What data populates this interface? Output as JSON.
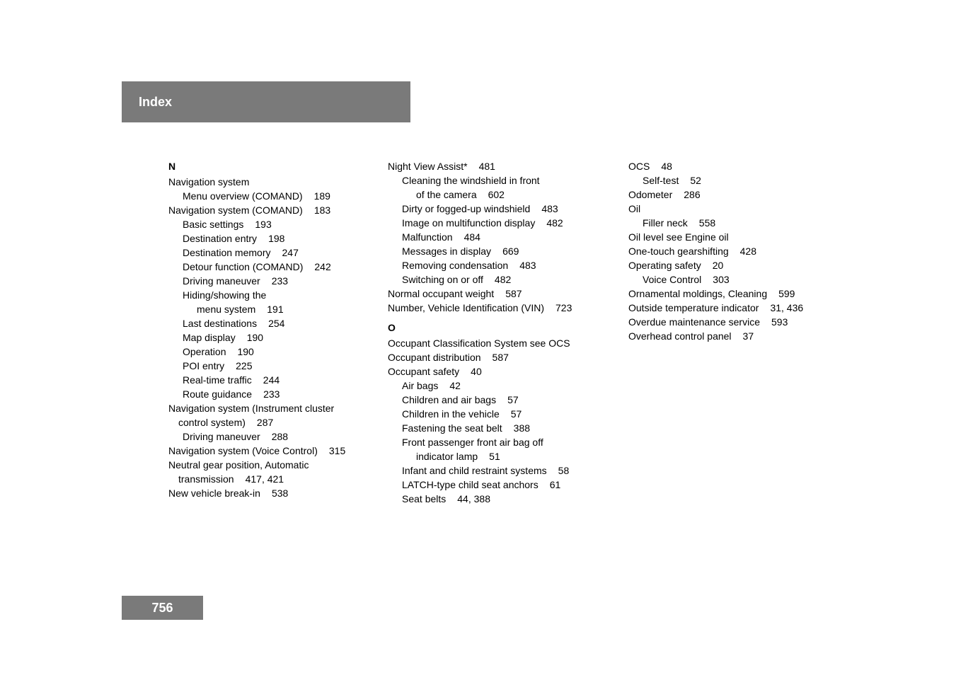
{
  "header": {
    "title": "Index"
  },
  "pageNumber": "756",
  "column1": {
    "sectionLetter": "N",
    "entries": [
      {
        "text": "Navigation system",
        "level": 0
      },
      {
        "text": "Menu overview (COMAND)",
        "page": "189",
        "level": 1
      },
      {
        "text": "Navigation system (COMAND)",
        "page": "183",
        "level": 0
      },
      {
        "text": "Basic settings",
        "page": "193",
        "level": 1
      },
      {
        "text": "Destination entry",
        "page": "198",
        "level": 1
      },
      {
        "text": "Destination memory",
        "page": "247",
        "level": 1
      },
      {
        "text": "Detour function (COMAND)",
        "page": "242",
        "level": 1
      },
      {
        "text": "Driving maneuver",
        "page": "233",
        "level": 1
      },
      {
        "text": "Hiding/showing the",
        "level": 1
      },
      {
        "text": "menu system",
        "page": "191",
        "level": 2
      },
      {
        "text": "Last destinations",
        "page": "254",
        "level": 1
      },
      {
        "text": "Map display",
        "page": "190",
        "level": 1
      },
      {
        "text": "Operation",
        "page": "190",
        "level": 1
      },
      {
        "text": "POI entry",
        "page": "225",
        "level": 1
      },
      {
        "text": "Real-time traffic",
        "page": "244",
        "level": 1
      },
      {
        "text": "Route guidance",
        "page": "233",
        "level": 1
      },
      {
        "text": "Navigation system (Instrument cluster",
        "level": 0
      },
      {
        "text": "control system)",
        "page": "287",
        "level": 0,
        "continuation": true
      },
      {
        "text": "Driving maneuver",
        "page": "288",
        "level": 1
      },
      {
        "text": "Navigation system (Voice Control)",
        "page": "315",
        "level": 0
      },
      {
        "text": "Neutral gear position, Automatic",
        "level": 0
      },
      {
        "text": "transmission",
        "page": "417, 421",
        "level": 0,
        "continuation": true
      },
      {
        "text": "New vehicle break-in",
        "page": "538",
        "level": 0
      }
    ]
  },
  "column2": {
    "block1": [
      {
        "text": "Night View Assist*",
        "page": "481",
        "level": 0
      },
      {
        "text": "Cleaning the windshield in front",
        "level": 1
      },
      {
        "text": "of the camera",
        "page": "602",
        "level": 2
      },
      {
        "text": "Dirty or fogged-up windshield",
        "page": "483",
        "level": 1
      },
      {
        "text": "Image on multifunction display",
        "page": "482",
        "level": 1
      },
      {
        "text": "Malfunction",
        "page": "484",
        "level": 1
      },
      {
        "text": "Messages in display",
        "page": "669",
        "level": 1
      },
      {
        "text": "Removing condensation",
        "page": "483",
        "level": 1
      },
      {
        "text": "Switching on or off",
        "page": "482",
        "level": 1
      },
      {
        "text": "Normal occupant weight",
        "page": "587",
        "level": 0
      },
      {
        "text": "Number, Vehicle Identification (VIN)",
        "page": "723",
        "level": 0
      }
    ],
    "sectionLetter": "O",
    "block2": [
      {
        "text": "Occupant Classification System see OCS",
        "level": 0
      },
      {
        "text": "Occupant distribution",
        "page": "587",
        "level": 0
      },
      {
        "text": "Occupant safety",
        "page": "40",
        "level": 0
      },
      {
        "text": "Air bags",
        "page": "42",
        "level": 1
      },
      {
        "text": "Children and air bags",
        "page": "57",
        "level": 1
      },
      {
        "text": "Children in the vehicle",
        "page": "57",
        "level": 1
      },
      {
        "text": "Fastening the seat belt",
        "page": "388",
        "level": 1
      },
      {
        "text": "Front passenger front air bag off",
        "level": 1
      },
      {
        "text": "indicator lamp",
        "page": "51",
        "level": 2
      },
      {
        "text": "Infant and child restraint systems",
        "page": "58",
        "level": 1
      },
      {
        "text": "LATCH-type child seat anchors",
        "page": "61",
        "level": 1
      },
      {
        "text": "Seat belts",
        "page": "44, 388",
        "level": 1
      }
    ]
  },
  "column3": {
    "entries": [
      {
        "text": "OCS",
        "page": "48",
        "level": 0
      },
      {
        "text": "Self-test",
        "page": "52",
        "level": 1
      },
      {
        "text": "Odometer",
        "page": "286",
        "level": 0
      },
      {
        "text": "Oil",
        "level": 0
      },
      {
        "text": "Filler neck",
        "page": "558",
        "level": 1
      },
      {
        "text": "Oil level see Engine oil",
        "level": 0
      },
      {
        "text": "One-touch gearshifting",
        "page": "428",
        "level": 0
      },
      {
        "text": "Operating safety",
        "page": "20",
        "level": 0
      },
      {
        "text": "Voice Control",
        "page": "303",
        "level": 1
      },
      {
        "text": "Ornamental moldings, Cleaning",
        "page": "599",
        "level": 0
      },
      {
        "text": "Outside temperature indicator",
        "page": "31, 436",
        "level": 0
      },
      {
        "text": "Overdue maintenance service",
        "page": "593",
        "level": 0
      },
      {
        "text": "Overhead control panel",
        "page": "37",
        "level": 0
      }
    ]
  }
}
